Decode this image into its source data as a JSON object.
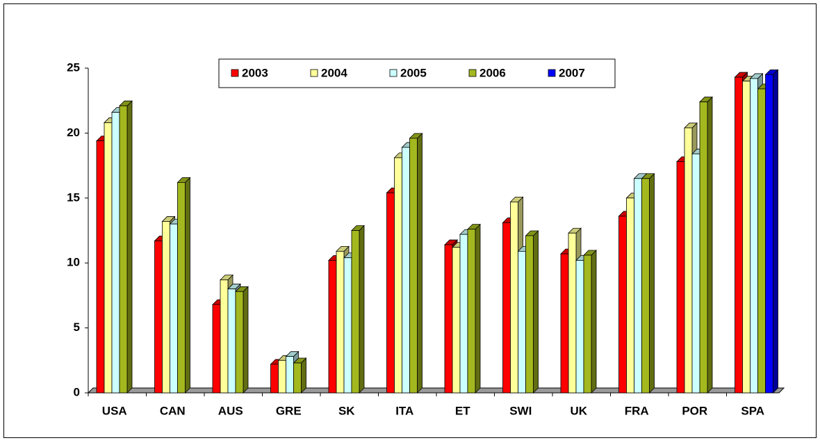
{
  "chart_data": {
    "type": "bar3d",
    "categories": [
      "USA",
      "CAN",
      "AUS",
      "GRE",
      "SK",
      "ITA",
      "ET",
      "SWI",
      "UK",
      "FRA",
      "POR",
      "SPA"
    ],
    "series": [
      {
        "name": "2003",
        "color": "#ff0000",
        "values": [
          19.4,
          11.7,
          6.8,
          2.2,
          10.2,
          15.4,
          11.4,
          13.1,
          10.7,
          13.6,
          17.8,
          24.3
        ]
      },
      {
        "name": "2004",
        "color": "#ffff99",
        "values": [
          20.8,
          13.2,
          8.7,
          2.5,
          10.9,
          18.1,
          11.2,
          14.7,
          12.3,
          15.0,
          20.4,
          24.0
        ]
      },
      {
        "name": "2005",
        "color": "#ccffff",
        "values": [
          21.6,
          13.0,
          8.0,
          2.8,
          10.4,
          18.9,
          12.2,
          10.9,
          10.2,
          16.5,
          18.4,
          24.2
        ]
      },
      {
        "name": "2006",
        "color": "#a3b81e",
        "values": [
          22.1,
          16.2,
          7.8,
          2.3,
          12.5,
          19.6,
          12.6,
          12.1,
          10.6,
          16.5,
          22.4,
          23.4
        ]
      },
      {
        "name": "2007",
        "color": "#0000ff",
        "values": [
          null,
          null,
          null,
          null,
          null,
          null,
          null,
          null,
          null,
          null,
          null,
          24.5
        ]
      }
    ],
    "ylim": [
      0,
      25
    ],
    "yticks": [
      0,
      5,
      10,
      15,
      20,
      25
    ],
    "legend": "top"
  }
}
